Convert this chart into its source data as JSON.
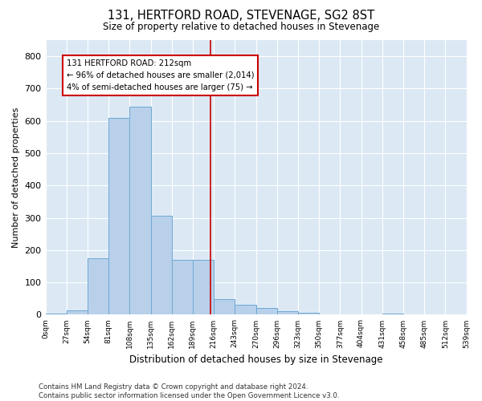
{
  "title": "131, HERTFORD ROAD, STEVENAGE, SG2 8ST",
  "subtitle": "Size of property relative to detached houses in Stevenage",
  "xlabel": "Distribution of detached houses by size in Stevenage",
  "ylabel": "Number of detached properties",
  "bar_color": "#b8d0ea",
  "bar_edge_color": "#6fa8d4",
  "background_color": "#dce9f5",
  "grid_color": "#ffffff",
  "annotation_box_color": "#cc0000",
  "vline_color": "#cc0000",
  "vline_x": 7.85,
  "annotation_text": "131 HERTFORD ROAD: 212sqm\n← 96% of detached houses are smaller (2,014)\n4% of semi-detached houses are larger (75) →",
  "footer": "Contains HM Land Registry data © Crown copyright and database right 2024.\nContains public sector information licensed under the Open Government Licence v3.0.",
  "bins": [
    "0sqm",
    "27sqm",
    "54sqm",
    "81sqm",
    "108sqm",
    "135sqm",
    "162sqm",
    "189sqm",
    "216sqm",
    "243sqm",
    "270sqm",
    "296sqm",
    "323sqm",
    "350sqm",
    "377sqm",
    "404sqm",
    "431sqm",
    "458sqm",
    "485sqm",
    "512sqm",
    "539sqm"
  ],
  "bar_heights": [
    4,
    14,
    175,
    610,
    645,
    307,
    170,
    170,
    47,
    30,
    20,
    10,
    5,
    2,
    2,
    2,
    4,
    1,
    1,
    1
  ],
  "ylim": [
    0,
    850
  ],
  "yticks": [
    0,
    100,
    200,
    300,
    400,
    500,
    600,
    700,
    800
  ],
  "fig_width": 6.0,
  "fig_height": 5.0,
  "dpi": 100
}
